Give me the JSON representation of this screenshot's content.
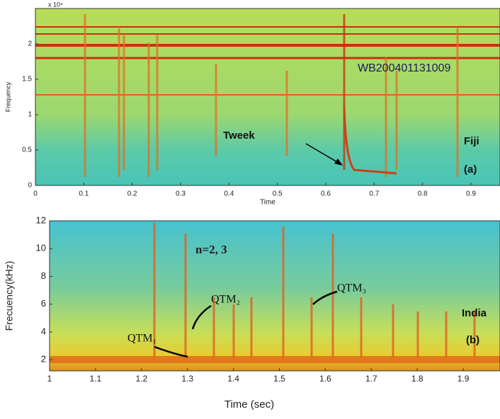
{
  "chart_data": [
    {
      "type": "spectrogram",
      "x_label": "Time",
      "y_label": "Frequency",
      "y_multiplier": "x 10⁴",
      "xlim": [
        0,
        0.96
      ],
      "xticks": [
        0,
        0.1,
        0.2,
        0.3,
        0.4,
        0.5,
        0.6,
        0.7,
        0.8,
        0.9
      ],
      "ylim": [
        0,
        2.5
      ],
      "yticks": [
        0,
        0.5,
        1,
        1.5,
        2
      ],
      "annotations": [
        "WB200401131009",
        "Tweek",
        "Fiji",
        "(a)"
      ]
    },
    {
      "type": "spectrogram",
      "x_label": "Time (sec)",
      "y_label": "Frecuency(kHz)",
      "xlim": [
        1,
        1.98
      ],
      "xticks": [
        1,
        1.1,
        1.2,
        1.3,
        1.4,
        1.5,
        1.6,
        1.7,
        1.8,
        1.9
      ],
      "ylim": [
        1.2,
        12
      ],
      "yticks": [
        2,
        4,
        6,
        8,
        10,
        12
      ],
      "annotations": [
        "n=2, 3",
        "QTM₁",
        "QTM₂",
        "QTM₃",
        "India",
        "(b)"
      ]
    }
  ]
}
